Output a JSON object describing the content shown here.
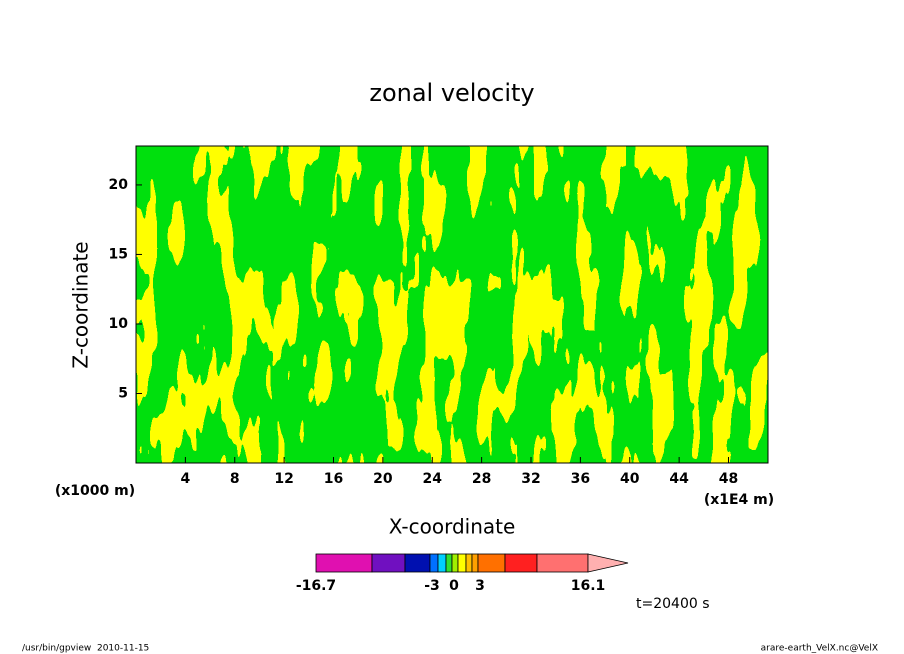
{
  "chart_data": {
    "type": "contour",
    "title": "zonal velocity",
    "x_label": "X-coordinate",
    "y_label": "Z-coordinate",
    "x_unit": "(x1E4 m)",
    "y_unit": "(x1000 m)",
    "xlim": [
      0,
      51.2
    ],
    "xticks": [
      4,
      8,
      12,
      16,
      20,
      24,
      28,
      32,
      36,
      40,
      44,
      48
    ],
    "ylim": [
      0,
      22.8
    ],
    "yticks": [
      5,
      10,
      15,
      20
    ],
    "colorbar": {
      "colors": [
        "#e010b0",
        "#7010c0",
        "#0010b0",
        "#0070ff",
        "#00d0ff",
        "#30e030",
        "#a0f000",
        "#ffff00",
        "#ffc000",
        "#ffa000",
        "#ff7000",
        "#ff2020",
        "#ff7070",
        "#ffb0b0"
      ],
      "ticks": [
        -16.7,
        -3,
        0,
        3,
        16.1
      ]
    },
    "time_label": "t=20400 s",
    "footer_left": "/usr/bin/gpview  2010-11-15",
    "footer_right": "arare-earth_VelX.nc@VelX"
  }
}
